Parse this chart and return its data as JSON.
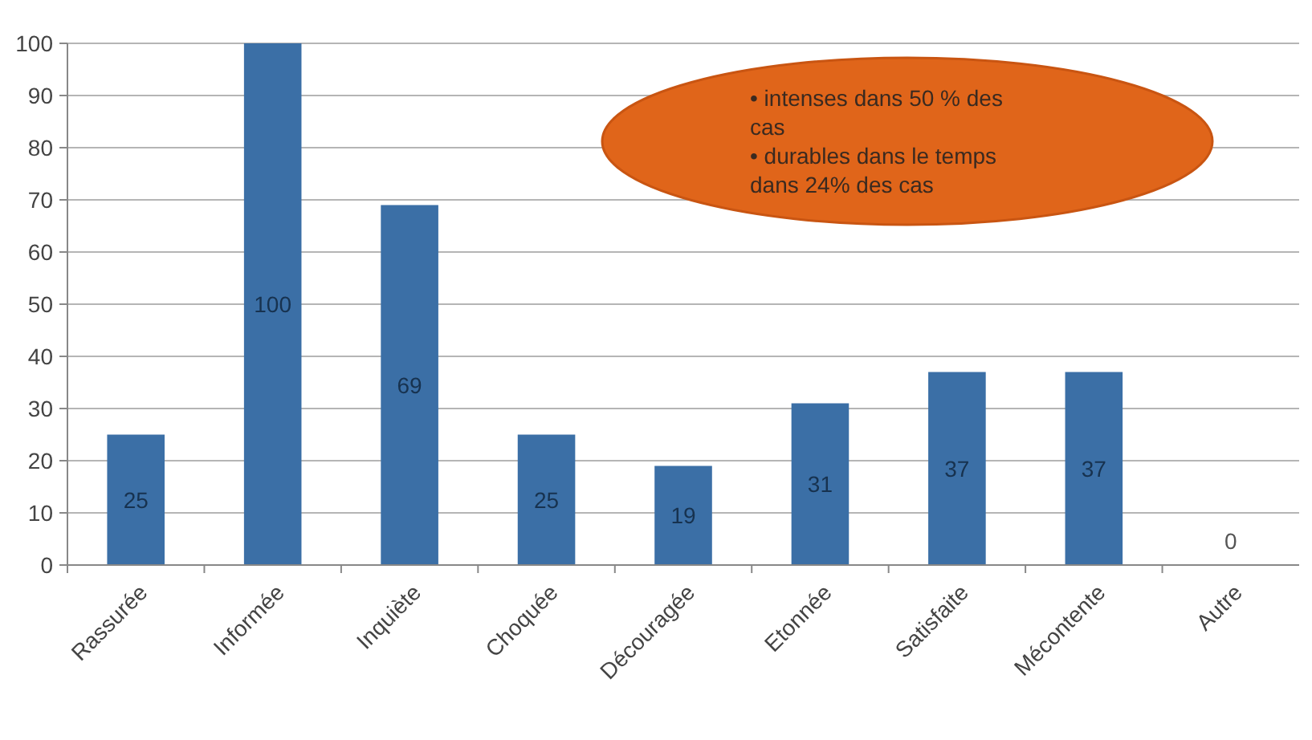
{
  "chart_data": {
    "type": "bar",
    "categories": [
      "Rassurée",
      "Informée",
      "Inquiète",
      "Choquée",
      "Découragée",
      "Etonnée",
      "Satisfaite",
      "Mécontente",
      "Autre"
    ],
    "values": [
      25,
      100,
      69,
      25,
      19,
      31,
      37,
      37,
      0
    ],
    "color": "#3b6fa6",
    "data_labels": true,
    "ylim": [
      0,
      100
    ],
    "yticks": [
      0,
      10,
      20,
      30,
      40,
      50,
      60,
      70,
      80,
      90,
      100
    ],
    "grid": "y",
    "annotations": [
      "• intenses dans 50 % des cas",
      "• durables dans le temps dans 24% des cas"
    ]
  }
}
